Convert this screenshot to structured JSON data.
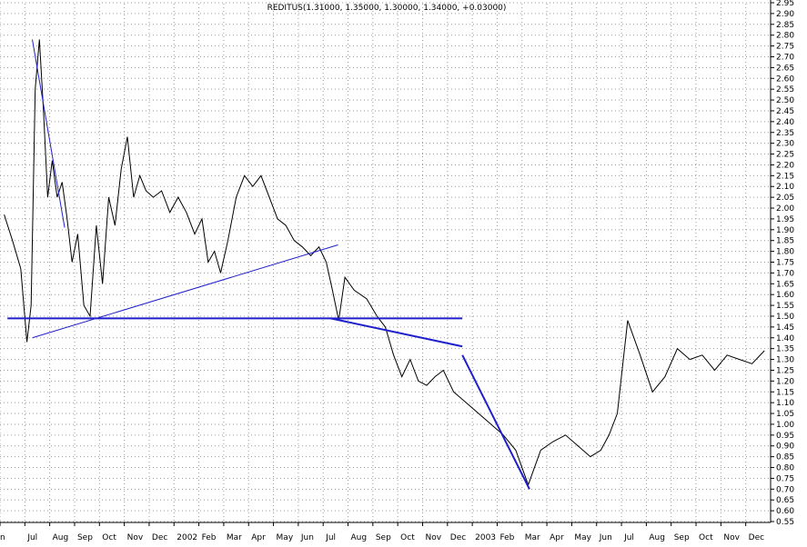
{
  "chart_data": {
    "type": "line",
    "title": "REDITUS(1.31000, 1.35000, 1.30000, 1.34000, +0.03000)",
    "ylim": [
      0.55,
      2.95
    ],
    "y_ticks": [
      0.55,
      0.6,
      0.65,
      0.7,
      0.75,
      0.8,
      0.85,
      0.9,
      0.95,
      1.0,
      1.05,
      1.1,
      1.15,
      1.2,
      1.25,
      1.3,
      1.35,
      1.4,
      1.45,
      1.5,
      1.55,
      1.6,
      1.65,
      1.7,
      1.75,
      1.8,
      1.85,
      1.9,
      1.95,
      2.0,
      2.05,
      2.1,
      2.15,
      2.2,
      2.25,
      2.3,
      2.35,
      2.4,
      2.45,
      2.5,
      2.55,
      2.6,
      2.65,
      2.7,
      2.75,
      2.8,
      2.85,
      2.9,
      2.95
    ],
    "y_tick_labels": [
      "0.55",
      "0.60",
      "0.65",
      "0.70",
      "0.75",
      "0.80",
      "0.85",
      "0.90",
      "0.95",
      "1.00",
      "1.05",
      "1.10",
      "1.15",
      "1.20",
      "1.25",
      "1.30",
      "1.35",
      "1.40",
      "1.45",
      "1.50",
      "1.55",
      "1.60",
      "1.65",
      "1.70",
      "1.75",
      "1.80",
      "1.85",
      "1.90",
      "1.95",
      "2.00",
      "2.05",
      "2.10",
      "2.15",
      "2.20",
      "2.25",
      "2.30",
      "2.35",
      "2.40",
      "2.45",
      "2.50",
      "2.55",
      "2.60",
      "2.65",
      "2.70",
      "2.75",
      "2.80",
      "2.85",
      "2.90",
      "2.95"
    ],
    "x_ticks": [
      "Jun",
      "Jul",
      "Aug",
      "Sep",
      "Oct",
      "Nov",
      "Dec",
      "2002",
      "Feb",
      "Mar",
      "Apr",
      "May",
      "Jun",
      "Jul",
      "Aug",
      "Sep",
      "Oct",
      "Nov",
      "Dec",
      "2003",
      "Feb",
      "Mar",
      "Apr",
      "May",
      "Jun",
      "Jul",
      "Aug",
      "Sep",
      "Oct",
      "Nov",
      "Dec"
    ],
    "x_labels_display": [
      "n",
      "Jul",
      "Aug",
      "Sep",
      "Oct",
      "Nov",
      "Dec",
      "2002",
      "Feb",
      "Mar",
      "Apr",
      "May",
      "Jun",
      "Jul",
      "Aug",
      "Sep",
      "Oct",
      "Nov",
      "Dec",
      "2003",
      "Feb",
      "Mar",
      "Apr",
      "May",
      "Jun",
      "Jul",
      "Aug",
      "Sep",
      "Oct",
      "Nov",
      "Dec"
    ],
    "series": [
      {
        "values": [
          [
            "Jun",
            1.97
          ],
          [
            "Jun",
            1.85
          ],
          [
            "Jun",
            1.72
          ],
          [
            "Jul",
            1.38
          ],
          [
            "Jul",
            1.55
          ],
          [
            "Jul",
            2.55
          ],
          [
            "Jul",
            2.78
          ],
          [
            "Jul",
            2.45
          ],
          [
            "Jul",
            2.05
          ],
          [
            "Aug",
            2.22
          ],
          [
            "Aug",
            2.05
          ],
          [
            "Aug",
            2.12
          ],
          [
            "Aug",
            1.95
          ],
          [
            "Aug",
            1.75
          ],
          [
            "Sep",
            1.88
          ],
          [
            "Sep",
            1.55
          ],
          [
            "Sep",
            1.5
          ],
          [
            "Sep",
            1.92
          ],
          [
            "Oct",
            1.65
          ],
          [
            "Oct",
            2.05
          ],
          [
            "Oct",
            1.92
          ],
          [
            "Oct",
            2.18
          ],
          [
            "Nov",
            2.33
          ],
          [
            "Nov",
            2.05
          ],
          [
            "Nov",
            2.15
          ],
          [
            "Nov",
            2.08
          ],
          [
            "Dec",
            2.05
          ],
          [
            "Dec",
            2.08
          ],
          [
            "Dec",
            1.98
          ],
          [
            "2002",
            2.05
          ],
          [
            "2002",
            1.98
          ],
          [
            "2002",
            1.88
          ],
          [
            "Feb",
            1.95
          ],
          [
            "Feb",
            1.75
          ],
          [
            "Feb",
            1.8
          ],
          [
            "Feb",
            1.7
          ],
          [
            "Mar",
            1.85
          ],
          [
            "Mar",
            2.05
          ],
          [
            "Mar",
            2.15
          ],
          [
            "Apr",
            2.1
          ],
          [
            "Apr",
            2.15
          ],
          [
            "Apr",
            2.05
          ],
          [
            "May",
            1.95
          ],
          [
            "May",
            1.92
          ],
          [
            "May",
            1.85
          ],
          [
            "Jun",
            1.82
          ],
          [
            "Jun",
            1.78
          ],
          [
            "Jun",
            1.82
          ],
          [
            "Jul",
            1.75
          ],
          [
            "Jul",
            1.62
          ],
          [
            "Jul",
            1.48
          ],
          [
            "Jul",
            1.68
          ],
          [
            "Aug",
            1.62
          ],
          [
            "Aug",
            1.58
          ],
          [
            "Sep",
            1.5
          ],
          [
            "Sep",
            1.45
          ],
          [
            "Sep",
            1.32
          ],
          [
            "Oct",
            1.22
          ],
          [
            "Oct",
            1.3
          ],
          [
            "Oct",
            1.2
          ],
          [
            "Nov",
            1.18
          ],
          [
            "Nov",
            1.22
          ],
          [
            "Nov",
            1.25
          ],
          [
            "Dec",
            1.15
          ],
          [
            "Dec",
            1.1
          ],
          [
            "2003",
            1.05
          ],
          [
            "2003",
            1.0
          ],
          [
            "Feb",
            0.95
          ],
          [
            "Feb",
            0.88
          ],
          [
            "Mar",
            0.72
          ],
          [
            "Mar",
            0.88
          ],
          [
            "Apr",
            0.92
          ],
          [
            "Apr",
            0.95
          ],
          [
            "May",
            0.9
          ],
          [
            "May",
            0.85
          ],
          [
            "Jun",
            0.88
          ],
          [
            "Jun",
            0.95
          ],
          [
            "Jun",
            1.05
          ],
          [
            "Jul",
            1.48
          ],
          [
            "Jul",
            1.32
          ],
          [
            "Aug",
            1.15
          ],
          [
            "Aug",
            1.22
          ],
          [
            "Sep",
            1.35
          ],
          [
            "Sep",
            1.3
          ],
          [
            "Oct",
            1.32
          ],
          [
            "Oct",
            1.25
          ],
          [
            "Nov",
            1.32
          ],
          [
            "Nov",
            1.3
          ],
          [
            "Dec",
            1.28
          ],
          [
            "Dec",
            1.34
          ]
        ]
      }
    ],
    "trendlines": [
      {
        "x1": "Jul",
        "y1": 2.78,
        "x2": "Aug",
        "y2": 1.91
      },
      {
        "x1": "Jul",
        "y1": 1.4,
        "x2": "Jul",
        "y2": 1.83
      },
      {
        "x1": "Jun",
        "y1": 1.49,
        "x2": "Dec",
        "y2": 1.49
      },
      {
        "x1": "Mar",
        "y1": 0.7,
        "x2": "Dec",
        "y2": 1.32
      },
      {
        "x1": "Jul",
        "y1": 1.49,
        "x2": "Dec",
        "y2": 1.36
      }
    ],
    "grid": true,
    "colors": {
      "price": "#000000",
      "trendline": "#1f1fcc",
      "grid": "#9a9a9a"
    }
  }
}
